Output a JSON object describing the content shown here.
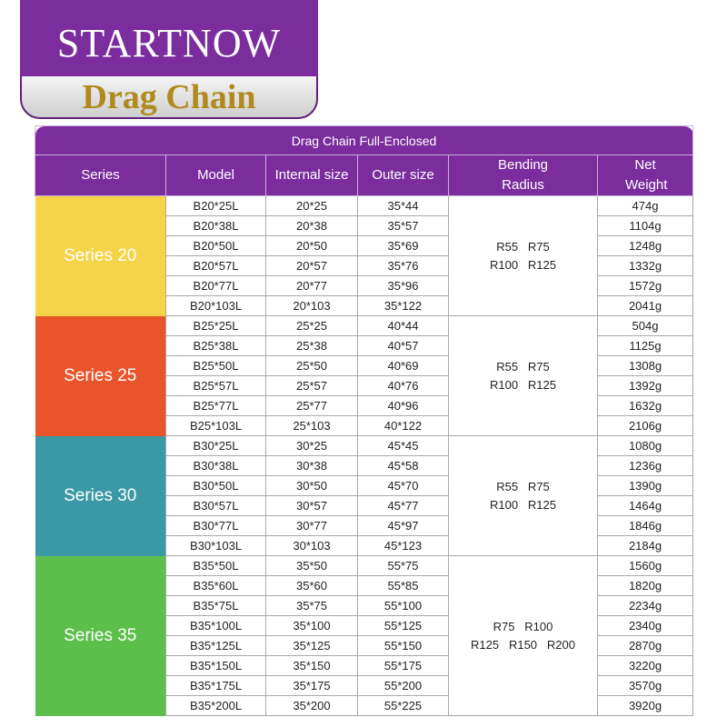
{
  "header": {
    "brand": "STARTNOW",
    "title": "Drag Chain"
  },
  "table": {
    "title": "Drag Chain Full-Enclosed",
    "columns": [
      "Series",
      "Model",
      "Internal size",
      "Outer size",
      "Bending Radius",
      "Net Weight"
    ],
    "groups": [
      {
        "series": "Series 20",
        "bending_radius": [
          "R55   R75",
          "R100   R125"
        ],
        "rows": [
          [
            "B20*25L",
            "20*25",
            "35*44",
            "474g"
          ],
          [
            "B20*38L",
            "20*38",
            "35*57",
            "1104g"
          ],
          [
            "B20*50L",
            "20*50",
            "35*69",
            "1248g"
          ],
          [
            "B20*57L",
            "20*57",
            "35*76",
            "1332g"
          ],
          [
            "B20*77L",
            "20*77",
            "35*96",
            "1572g"
          ],
          [
            "B20*103L",
            "20*103",
            "35*122",
            "2041g"
          ]
        ]
      },
      {
        "series": "Series 25",
        "bending_radius": [
          "R55   R75",
          "R100   R125"
        ],
        "rows": [
          [
            "B25*25L",
            "25*25",
            "40*44",
            "504g"
          ],
          [
            "B25*38L",
            "25*38",
            "40*57",
            "1125g"
          ],
          [
            "B25*50L",
            "25*50",
            "40*69",
            "1308g"
          ],
          [
            "B25*57L",
            "25*57",
            "40*76",
            "1392g"
          ],
          [
            "B25*77L",
            "25*77",
            "40*96",
            "1632g"
          ],
          [
            "B25*103L",
            "25*103",
            "40*122",
            "2106g"
          ]
        ]
      },
      {
        "series": "Series 30",
        "bending_radius": [
          "R55   R75",
          "R100   R125"
        ],
        "rows": [
          [
            "B30*25L",
            "30*25",
            "45*45",
            "1080g"
          ],
          [
            "B30*38L",
            "30*38",
            "45*58",
            "1236g"
          ],
          [
            "B30*50L",
            "30*50",
            "45*70",
            "1390g"
          ],
          [
            "B30*57L",
            "30*57",
            "45*77",
            "1464g"
          ],
          [
            "B30*77L",
            "30*77",
            "45*97",
            "1846g"
          ],
          [
            "B30*103L",
            "30*103",
            "45*123",
            "2184g"
          ]
        ]
      },
      {
        "series": "Series 35",
        "bending_radius": [
          "R75   R100",
          "R125   R150   R200"
        ],
        "rows": [
          [
            "B35*50L",
            "35*50",
            "55*75",
            "1560g"
          ],
          [
            "B35*60L",
            "35*60",
            "55*85",
            "1820g"
          ],
          [
            "B35*75L",
            "35*75",
            "55*100",
            "2234g"
          ],
          [
            "B35*100L",
            "35*100",
            "55*125",
            "2340g"
          ],
          [
            "B35*125L",
            "35*125",
            "55*150",
            "2870g"
          ],
          [
            "B35*150L",
            "35*150",
            "55*175",
            "3220g"
          ],
          [
            "B35*175L",
            "35*175",
            "55*200",
            "3570g"
          ],
          [
            "B35*200L",
            "35*200",
            "55*225",
            "3920g"
          ]
        ]
      }
    ]
  }
}
